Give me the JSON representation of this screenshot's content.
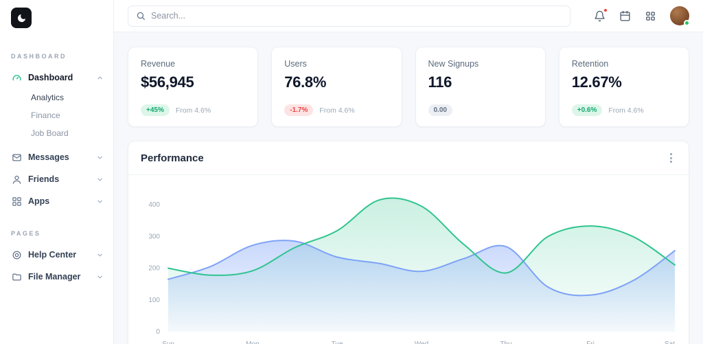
{
  "app": {
    "accent": "#10b981"
  },
  "sidebar": {
    "sections": [
      {
        "label": "DASHBOARD"
      },
      {
        "label": "PAGES"
      }
    ],
    "nav": [
      {
        "label": "Dashboard",
        "icon": "gauge-icon",
        "expanded": true
      },
      {
        "label": "Messages",
        "icon": "mail-icon",
        "expanded": false
      },
      {
        "label": "Friends",
        "icon": "user-icon",
        "expanded": false
      },
      {
        "label": "Apps",
        "icon": "grid-icon",
        "expanded": false
      }
    ],
    "dashboard_children": [
      {
        "label": "Analytics"
      },
      {
        "label": "Finance"
      },
      {
        "label": "Job Board"
      }
    ],
    "pages_nav": [
      {
        "label": "Help Center",
        "icon": "help-icon"
      },
      {
        "label": "File Manager",
        "icon": "folder-icon"
      }
    ]
  },
  "header": {
    "search_placeholder": "Search...",
    "icons": [
      "bell-icon",
      "calendar-icon",
      "apps-grid-icon",
      "avatar"
    ]
  },
  "stats": [
    {
      "title": "Revenue",
      "value": "$56,945",
      "badge": "+45%",
      "trend": "up",
      "note": "From 4.6%"
    },
    {
      "title": "Users",
      "value": "76.8%",
      "badge": "-1.7%",
      "trend": "down",
      "note": "From 4.6%"
    },
    {
      "title": "New Signups",
      "value": "116",
      "badge": "0.00",
      "trend": "flat",
      "note": ""
    },
    {
      "title": "Retention",
      "value": "12.67%",
      "badge": "+0.6%",
      "trend": "up",
      "note": "From 4.6%"
    }
  ],
  "performance": {
    "title": "Performance"
  },
  "chart_data": {
    "type": "area",
    "title": "Performance",
    "x_labels": [
      "Sun",
      "Mon",
      "Tue",
      "Wed",
      "Thu",
      "Fri",
      "Sat"
    ],
    "yticks": [
      0,
      100,
      200,
      300,
      400
    ],
    "ymax": 450,
    "grid": false,
    "legend": "none",
    "points_per_label": 2,
    "series": [
      {
        "name": "green-series",
        "color": "#2fc48e",
        "fill_from": "rgba(47,196,142,0.25)",
        "fill_to": "rgba(47,196,142,0.02)",
        "values": [
          200,
          178,
          192,
          265,
          318,
          415,
          395,
          275,
          185,
          300,
          333,
          300,
          210
        ]
      },
      {
        "name": "blue-series",
        "color": "#7da2f7",
        "fill_from": "rgba(125,162,247,0.42)",
        "fill_to": "rgba(125,162,247,0.05)",
        "values": [
          165,
          205,
          272,
          285,
          235,
          215,
          190,
          230,
          268,
          140,
          115,
          160,
          255
        ]
      }
    ]
  }
}
